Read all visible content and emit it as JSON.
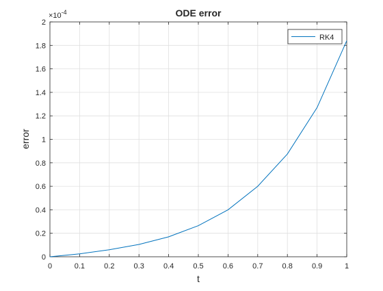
{
  "chart_data": {
    "type": "line",
    "title": "ODE error",
    "xlabel": "t",
    "ylabel": "error",
    "exponent_label": "×10",
    "exponent_power": "-4",
    "xlim": [
      0,
      1
    ],
    "ylim": [
      0,
      2
    ],
    "xticks": [
      "0",
      "0.1",
      "0.2",
      "0.3",
      "0.4",
      "0.5",
      "0.6",
      "0.7",
      "0.8",
      "0.9",
      "1"
    ],
    "yticks": [
      "0",
      "0.2",
      "0.4",
      "0.6",
      "0.8",
      "1",
      "1.2",
      "1.4",
      "1.6",
      "1.8",
      "2"
    ],
    "grid": true,
    "legend_position": "top-right",
    "x": [
      0,
      0.1,
      0.2,
      0.3,
      0.4,
      0.5,
      0.6,
      0.7,
      0.8,
      0.9,
      1.0
    ],
    "series": [
      {
        "name": "RK4",
        "color": "#0072BD",
        "values": [
          0,
          0.025,
          0.06,
          0.105,
          0.17,
          0.265,
          0.4,
          0.6,
          0.875,
          1.27,
          1.84
        ]
      }
    ]
  }
}
